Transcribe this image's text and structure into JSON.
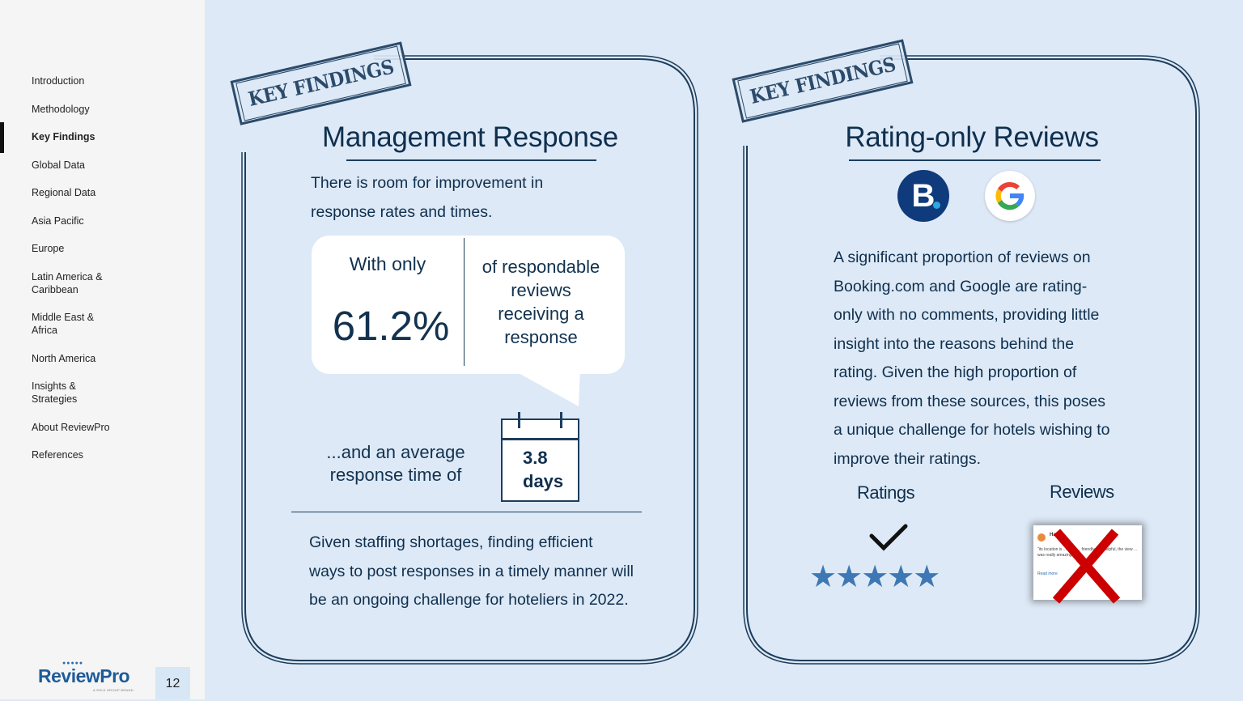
{
  "sidebar": {
    "items": [
      {
        "label": "Introduction"
      },
      {
        "label": "Methodology"
      },
      {
        "label": "Key Findings"
      },
      {
        "label": "Global Data"
      },
      {
        "label": "Regional Data"
      },
      {
        "label": "Asia Pacific"
      },
      {
        "label": "Europe"
      },
      {
        "label": "Latin America & Caribbean"
      },
      {
        "label": "Middle East & Africa"
      },
      {
        "label": "North America"
      },
      {
        "label": "Insights & Strategies"
      },
      {
        "label": "About ReviewPro"
      },
      {
        "label": "References"
      }
    ],
    "active_item": "Key Findings",
    "logo_text": "ReviewPro",
    "logo_tagline": "A SHIJI GROUP BRAND",
    "page_number": "12"
  },
  "left_card": {
    "stamp": "KEY FINDINGS",
    "title": "Management Response",
    "intro_line1": "There is room for improvement in",
    "intro_line2": "response rates and times.",
    "bubble": {
      "with_only": "With only",
      "percent": "61.2%",
      "resp_line1": "of respondable",
      "resp_line2": "reviews",
      "resp_line3": "receiving a",
      "resp_line4": "response"
    },
    "avg_line1": "...and an average",
    "avg_line2": "response time of",
    "calendar_value_line1": "3.8",
    "calendar_value_line2": "days",
    "closing_line1": "Given staffing shortages, finding efficient",
    "closing_line2": "ways to post responses in a timely manner will",
    "closing_line3": "be an ongoing challenge for hoteliers in 2022."
  },
  "right_card": {
    "stamp": "KEY FINDINGS",
    "title": "Rating-only Reviews",
    "brands": [
      "booking-icon",
      "google-icon"
    ],
    "booking_letter": "B",
    "para_lines": [
      "A significant proportion of reviews on",
      "Booking.com and Google are rating-",
      "only with no comments, providing little",
      "insight into the reasons behind the",
      "rating. Given the high proportion of",
      "reviews from these sources, this poses",
      "a unique challenge for hotels wishing to",
      "improve their ratings."
    ],
    "ratings_label": "Ratings",
    "reviews_label": "Reviews",
    "stars": "★★★★★",
    "review_sample": {
      "name": "Ha",
      "text": "\"its location is ... Staff ... friendly and helpful, the view ... was really amazing!\"",
      "read_more": "Read more"
    }
  },
  "colors": {
    "background": "#dde9f6",
    "sidebar": "#f5f5f5",
    "navy": "#0f2f4e",
    "star_blue": "#3d78b5",
    "cross_red": "#cc0000",
    "booking_blue": "#0f3a7c"
  }
}
